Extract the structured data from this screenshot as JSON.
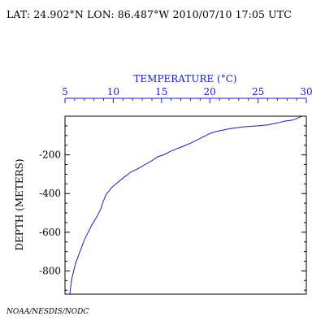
{
  "header": {
    "location": "LAT: 24.902°N LON: 86.487°W 2010/07/10 17:05 UTC"
  },
  "footer": {
    "credit": "NOAA/NESDIS/NODC"
  },
  "colors": {
    "profile": "#1a1acc",
    "axis_top": "#1a1acc",
    "axis_left": "#000000"
  },
  "chart_data": {
    "type": "line",
    "title": "",
    "xlabel": "TEMPERATURE (°C)",
    "ylabel": "DEPTH (METERS)",
    "x_axis_position": "top",
    "xlim": [
      5,
      30
    ],
    "ylim": [
      -920,
      0
    ],
    "x_ticks": [
      5,
      10,
      15,
      20,
      25,
      30
    ],
    "y_ticks": [
      -200,
      -400,
      -600,
      -800
    ],
    "grid": false,
    "legend": "none",
    "series": [
      {
        "x": [
          29.6,
          29.3,
          28.6,
          27.8,
          27.0,
          26.0,
          25.0,
          23.5,
          22.0,
          20.6,
          20.0,
          19.6,
          18.8,
          18.0,
          17.0,
          16.0,
          15.2,
          14.6,
          14.0,
          13.3,
          12.6,
          11.8,
          11.0,
          10.4,
          9.8,
          9.5,
          9.2,
          8.9,
          8.7,
          8.3,
          7.8,
          7.4,
          7.0,
          6.7,
          6.4,
          6.1,
          5.9,
          5.7,
          5.6,
          5.5
        ],
        "y": [
          0,
          -5,
          -20,
          -25,
          -35,
          -45,
          -50,
          -55,
          -65,
          -80,
          -90,
          -100,
          -120,
          -140,
          -160,
          -180,
          -200,
          -210,
          -230,
          -250,
          -270,
          -290,
          -320,
          -345,
          -370,
          -390,
          -410,
          -450,
          -480,
          -520,
          -560,
          -600,
          -640,
          -680,
          -720,
          -760,
          -800,
          -840,
          -880,
          -920
        ]
      }
    ]
  }
}
